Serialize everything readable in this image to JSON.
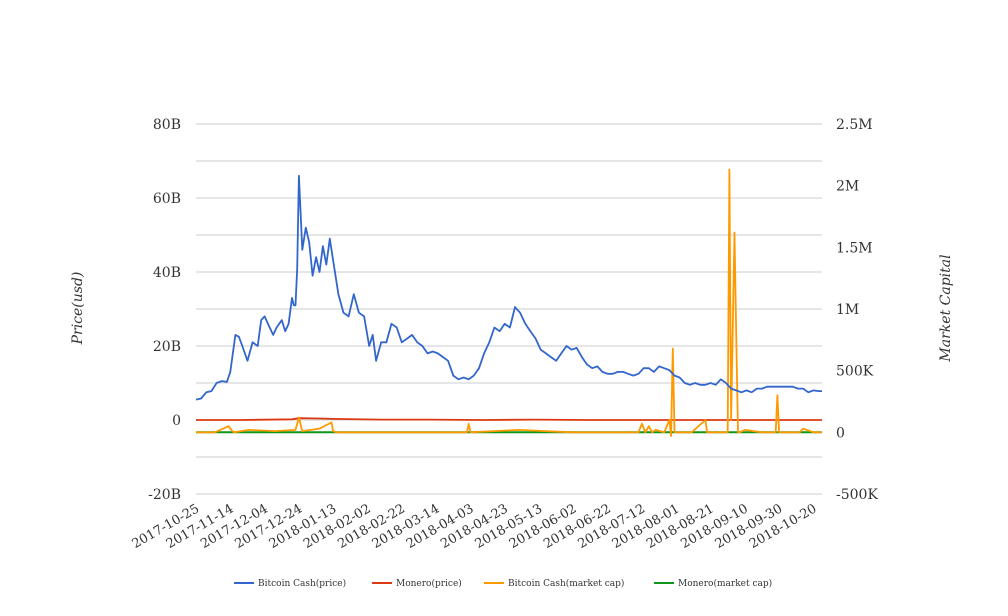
{
  "chart_data": {
    "type": "line",
    "title": "",
    "ylabel": "Price(usd)",
    "y2label": "Market Capital",
    "ylim": [
      -20000000000,
      80000000000
    ],
    "y2lim": [
      -500000,
      2500000
    ],
    "yticks": [
      "80B",
      "60B",
      "40B",
      "20B",
      "0",
      "-20B"
    ],
    "y2ticks": [
      "2.5M",
      "2M",
      "1.5M",
      "1M",
      "500K",
      "0",
      "-500K"
    ],
    "xrange": [
      "2017-10-25",
      "2018-10-25"
    ],
    "xticks": [
      "2017-10-25",
      "2017-11-14",
      "2017-12-04",
      "2017-12-24",
      "2018-01-13",
      "2018-02-02",
      "2018-02-22",
      "2018-03-14",
      "2018-04-03",
      "2018-04-23",
      "2018-05-13",
      "2018-06-02",
      "2018-06-22",
      "2018-07-12",
      "2018-08-01",
      "2018-08-21",
      "2018-09-10",
      "2018-09-30",
      "2018-10-20"
    ],
    "grid": true,
    "legend_position": "bottom",
    "series": [
      {
        "name": "Bitcoin Cash(price)",
        "color": "#3366cc",
        "axis": "left",
        "x": [
          "2017-10-25",
          "2017-10-28",
          "2017-10-31",
          "2017-11-03",
          "2017-11-06",
          "2017-11-09",
          "2017-11-12",
          "2017-11-14",
          "2017-11-17",
          "2017-11-19",
          "2017-11-21",
          "2017-11-24",
          "2017-11-27",
          "2017-11-30",
          "2017-12-02",
          "2017-12-04",
          "2017-12-07",
          "2017-12-09",
          "2017-12-11",
          "2017-12-14",
          "2017-12-16",
          "2017-12-18",
          "2017-12-20",
          "2017-12-21",
          "2017-12-22",
          "2017-12-23",
          "2017-12-24",
          "2017-12-26",
          "2017-12-28",
          "2017-12-30",
          "2018-01-01",
          "2018-01-03",
          "2018-01-05",
          "2018-01-07",
          "2018-01-09",
          "2018-01-11",
          "2018-01-13",
          "2018-01-16",
          "2018-01-19",
          "2018-01-22",
          "2018-01-25",
          "2018-01-28",
          "2018-01-31",
          "2018-02-03",
          "2018-02-05",
          "2018-02-07",
          "2018-02-10",
          "2018-02-13",
          "2018-02-16",
          "2018-02-19",
          "2018-02-22",
          "2018-02-25",
          "2018-02-28",
          "2018-03-03",
          "2018-03-06",
          "2018-03-09",
          "2018-03-12",
          "2018-03-15",
          "2018-03-18",
          "2018-03-21",
          "2018-03-24",
          "2018-03-27",
          "2018-03-30",
          "2018-04-02",
          "2018-04-05",
          "2018-04-08",
          "2018-04-11",
          "2018-04-14",
          "2018-04-17",
          "2018-04-20",
          "2018-04-23",
          "2018-04-26",
          "2018-04-29",
          "2018-05-02",
          "2018-05-05",
          "2018-05-08",
          "2018-05-11",
          "2018-05-14",
          "2018-05-17",
          "2018-05-20",
          "2018-05-23",
          "2018-05-26",
          "2018-05-29",
          "2018-06-01",
          "2018-06-04",
          "2018-06-07",
          "2018-06-10",
          "2018-06-13",
          "2018-06-16",
          "2018-06-19",
          "2018-06-22",
          "2018-06-25",
          "2018-06-28",
          "2018-07-01",
          "2018-07-04",
          "2018-07-07",
          "2018-07-10",
          "2018-07-13",
          "2018-07-16",
          "2018-07-19",
          "2018-07-22",
          "2018-07-25",
          "2018-07-28",
          "2018-07-31",
          "2018-08-03",
          "2018-08-06",
          "2018-08-09",
          "2018-08-12",
          "2018-08-15",
          "2018-08-18",
          "2018-08-21",
          "2018-08-24",
          "2018-08-27",
          "2018-08-30",
          "2018-09-02",
          "2018-09-05",
          "2018-09-08",
          "2018-09-11",
          "2018-09-14",
          "2018-09-17",
          "2018-09-20",
          "2018-09-23",
          "2018-09-26",
          "2018-09-29",
          "2018-10-02",
          "2018-10-05",
          "2018-10-08",
          "2018-10-11",
          "2018-10-14",
          "2018-10-17",
          "2018-10-20",
          "2018-10-23",
          "2018-10-25"
        ],
        "y": [
          5500000000.0,
          5800000000.0,
          7500000000.0,
          7800000000.0,
          10000000000.0,
          10500000000.0,
          10300000000.0,
          13000000000.0,
          23000000000.0,
          22500000000.0,
          20000000000.0,
          16000000000.0,
          21000000000.0,
          20000000000.0,
          27000000000.0,
          28000000000.0,
          25000000000.0,
          23000000000.0,
          25000000000.0,
          27000000000.0,
          24000000000.0,
          26000000000.0,
          33000000000.0,
          31000000000.0,
          31000000000.0,
          41000000000.0,
          66000000000.0,
          46000000000.0,
          52000000000.0,
          48000000000.0,
          39000000000.0,
          44000000000.0,
          40000000000.0,
          47000000000.0,
          42000000000.0,
          49000000000.0,
          43000000000.0,
          34000000000.0,
          29000000000.0,
          28000000000.0,
          34000000000.0,
          29000000000.0,
          28000000000.0,
          20000000000.0,
          23000000000.0,
          16000000000.0,
          21000000000.0,
          21000000000.0,
          26000000000.0,
          25000000000.0,
          21000000000.0,
          22000000000.0,
          23000000000.0,
          21000000000.0,
          20000000000.0,
          18000000000.0,
          18500000000.0,
          18000000000.0,
          17000000000.0,
          16000000000.0,
          12000000000.0,
          11000000000.0,
          11500000000.0,
          11000000000.0,
          12000000000.0,
          14000000000.0,
          18000000000.0,
          21000000000.0,
          25000000000.0,
          24000000000.0,
          26000000000.0,
          25000000000.0,
          30500000000.0,
          29000000000.0,
          26000000000.0,
          24000000000.0,
          22000000000.0,
          19000000000.0,
          18000000000.0,
          17000000000.0,
          16000000000.0,
          18000000000.0,
          20000000000.0,
          19000000000.0,
          19500000000.0,
          17000000000.0,
          15000000000.0,
          14000000000.0,
          14500000000.0,
          13000000000.0,
          12500000000.0,
          12500000000.0,
          13000000000.0,
          13000000000.0,
          12500000000.0,
          12000000000.0,
          12500000000.0,
          14000000000.0,
          14000000000.0,
          13000000000.0,
          14500000000.0,
          14000000000.0,
          13500000000.0,
          12000000000.0,
          11500000000.0,
          10000000000.0,
          9500000000.0,
          10000000000.0,
          9500000000.0,
          9500000000.0,
          10000000000.0,
          9500000000.0,
          11000000000.0,
          10000000000.0,
          8500000000.0,
          8000000000.0,
          7500000000.0,
          8000000000.0,
          7500000000.0,
          8500000000.0,
          8500000000.0,
          9000000000.0,
          9000000000.0,
          9000000000.0,
          9000000000.0,
          9000000000.0,
          9000000000.0,
          8500000000.0,
          8500000000.0,
          7500000000.0,
          8000000000.0,
          7800000000.0,
          7800000000.0
        ]
      },
      {
        "name": "Monero(price)",
        "color": "#dc3912",
        "axis": "left",
        "x": [
          "2017-10-25",
          "2017-11-20",
          "2017-12-20",
          "2017-12-24",
          "2018-01-05",
          "2018-01-13",
          "2018-02-10",
          "2018-03-10",
          "2018-04-10",
          "2018-05-10",
          "2018-06-10",
          "2018-07-10",
          "2018-08-10",
          "2018-09-10",
          "2018-10-10",
          "2018-10-25"
        ],
        "y": [
          0,
          0,
          200000000.0,
          500000000.0,
          400000000.0,
          300000000.0,
          100000000.0,
          100000000.0,
          0,
          100000000.0,
          0,
          0,
          0,
          0,
          0,
          0
        ]
      },
      {
        "name": "Bitcoin Cash(market cap)",
        "color": "#ff9900",
        "axis": "right",
        "x": [
          "2017-10-25",
          "2017-11-05",
          "2017-11-13",
          "2017-11-14",
          "2017-11-16",
          "2017-11-25",
          "2017-12-10",
          "2017-12-22",
          "2017-12-24",
          "2017-12-26",
          "2018-01-05",
          "2018-01-12",
          "2018-01-13",
          "2018-01-15",
          "2018-02-15",
          "2018-04-01",
          "2018-04-02",
          "2018-04-03",
          "2018-05-01",
          "2018-06-01",
          "2018-07-10",
          "2018-07-12",
          "2018-07-14",
          "2018-07-16",
          "2018-07-18",
          "2018-07-20",
          "2018-07-25",
          "2018-07-28",
          "2018-07-29",
          "2018-07-30",
          "2018-07-31",
          "2018-08-01",
          "2018-08-10",
          "2018-08-18",
          "2018-08-19",
          "2018-08-20",
          "2018-08-31",
          "2018-09-01",
          "2018-09-02",
          "2018-09-04",
          "2018-09-05",
          "2018-09-06",
          "2018-09-07",
          "2018-09-10",
          "2018-09-20",
          "2018-09-28",
          "2018-09-29",
          "2018-09-30",
          "2018-10-01",
          "2018-10-12",
          "2018-10-14",
          "2018-10-20",
          "2018-10-25"
        ],
        "y": [
          0,
          0,
          50000,
          30000,
          0,
          20000,
          10000,
          20000,
          120000,
          10000,
          30000,
          80000,
          10000,
          0,
          0,
          0,
          70000,
          0,
          20000,
          0,
          0,
          70000,
          0,
          50000,
          0,
          20000,
          0,
          100000,
          -30000,
          680000,
          0,
          0,
          0,
          100000,
          0,
          0,
          0,
          2130000,
          100000,
          1620000,
          800000,
          0,
          0,
          20000,
          0,
          0,
          300000,
          0,
          0,
          0,
          30000,
          0,
          0
        ]
      },
      {
        "name": "Monero(market cap)",
        "color": "#109618",
        "axis": "right",
        "x": [
          "2017-10-25",
          "2018-10-25"
        ],
        "y": [
          0,
          0
        ]
      }
    ]
  }
}
